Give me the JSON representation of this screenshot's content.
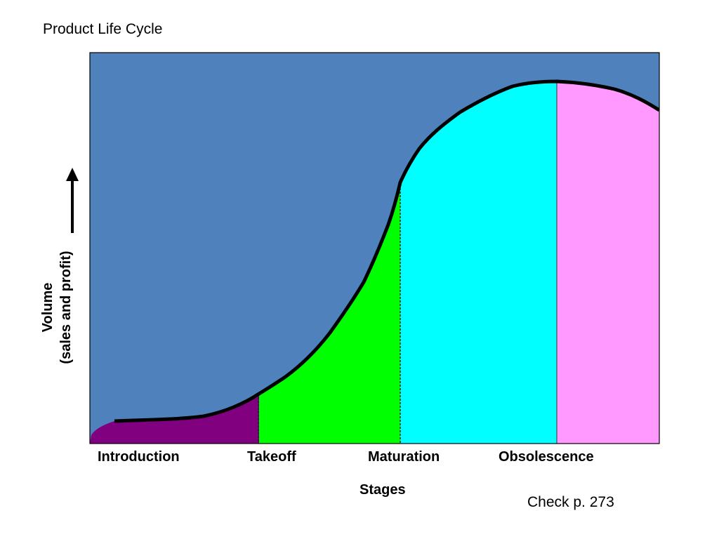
{
  "slide": {
    "title": "Product Life Cycle",
    "note": "Check p. 273"
  },
  "y_axis": {
    "line1": "Volume",
    "line2": "(sales and profit)",
    "arrow_icon": "up-arrow-icon"
  },
  "x_axis": {
    "title": "Stages",
    "stages": [
      "Introduction",
      "Takeoff",
      "Maturation",
      "Obsolescence"
    ]
  },
  "colors": {
    "background_panel": "#4f81bd",
    "introduction": "#800080",
    "takeoff": "#00ff00",
    "maturation": "#00ffff",
    "obsolescence": "#ff99ff",
    "curve": "#000000"
  }
}
